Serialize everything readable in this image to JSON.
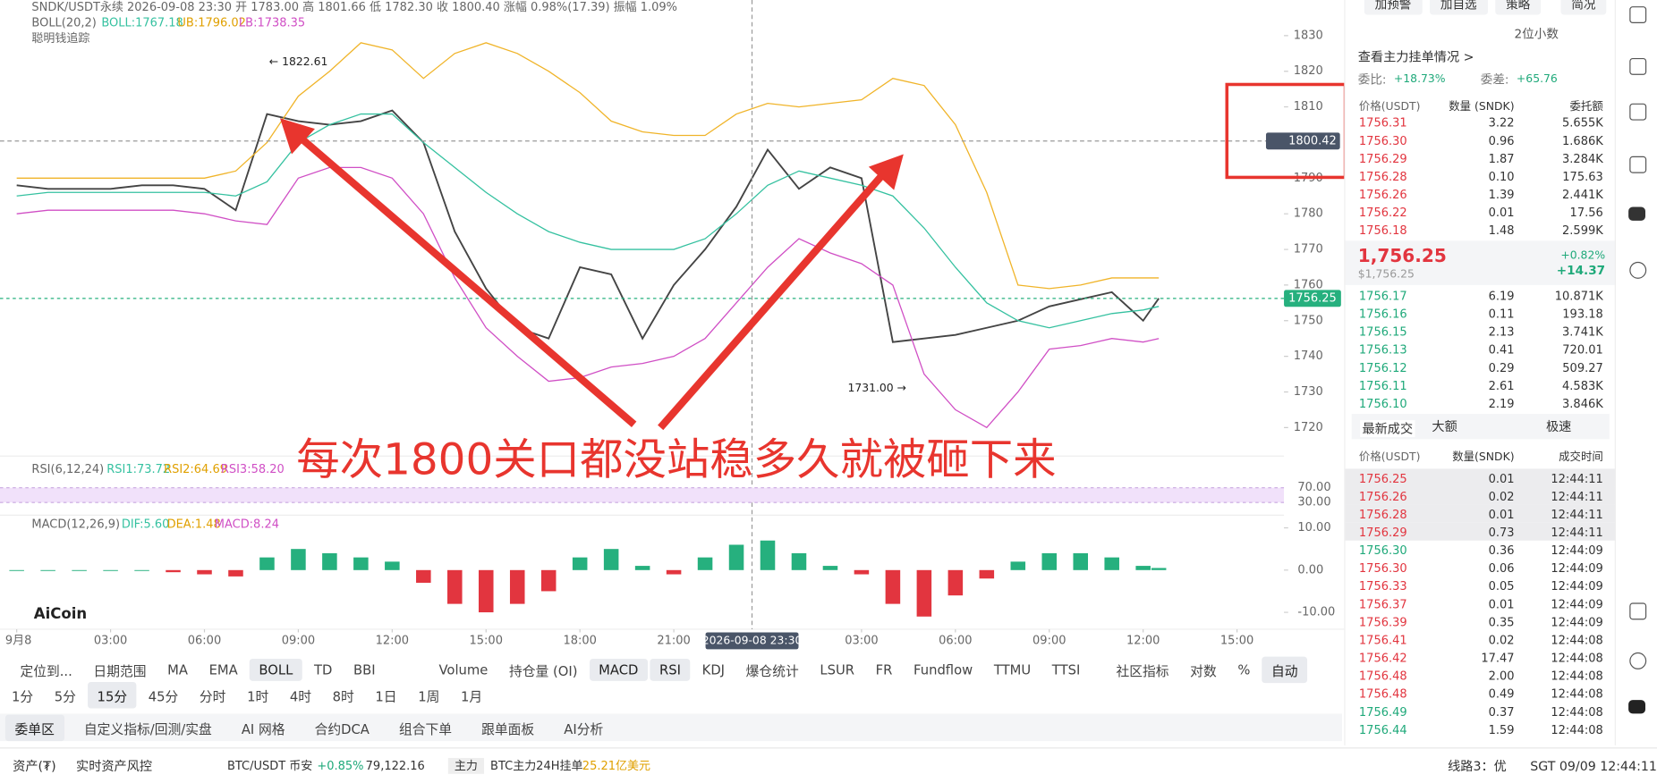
{
  "header": {
    "quote": "SNDK/USDT永续 2026-09-08 23:30 开 1783.00 高 1801.66 低 1782.30 收 1800.40 涨幅 0.98%(17.39) 振幅 1.09%",
    "boll": [
      "BOLL(20,2)",
      "BOLL:1767.18",
      "UB:1796.02",
      "LB:1738.35"
    ],
    "smart": "聪明钱追踪",
    "rsi": [
      "RSI(6,12,24)",
      "RSI1:73.72",
      "RSI2:64.69",
      "RSI3:58.20"
    ],
    "macd": [
      "MACD(12,26,9)",
      "DIF:5.60",
      "DEA:1.48",
      "MACD:8.24"
    ],
    "logo": "AiCoin",
    "overlay_text": "每次1800关口都没站稳多久就被砸下来"
  },
  "chart_data": [
    {
      "type": "line",
      "x": [
        0,
        1,
        2,
        3,
        4,
        5,
        6,
        7,
        8,
        9,
        10,
        11,
        12,
        13,
        14,
        15,
        16,
        17,
        18,
        19,
        20,
        21,
        22,
        23,
        24,
        25,
        26,
        27,
        28,
        29,
        30,
        31,
        32,
        33,
        34,
        35,
        36,
        36.5
      ],
      "xlim": [
        -0.5,
        40.5
      ],
      "xticks": [
        {
          "value": 0,
          "label": "9月8"
        },
        {
          "value": 3,
          "label": "03:00"
        },
        {
          "value": 6,
          "label": "06:00"
        },
        {
          "value": 9,
          "label": "09:00"
        },
        {
          "value": 12,
          "label": "12:00"
        },
        {
          "value": 15,
          "label": "15:00"
        },
        {
          "value": 18,
          "label": "18:00"
        },
        {
          "value": 21,
          "label": "21:00"
        },
        {
          "value": 27,
          "label": "03:00"
        },
        {
          "value": 30,
          "label": "06:00"
        },
        {
          "value": 33,
          "label": "09:00"
        },
        {
          "value": 36,
          "label": "12:00"
        },
        {
          "value": 39,
          "label": "15:00"
        }
      ],
      "ylim": [
        1712,
        1840
      ],
      "yticks": [
        1720,
        1730,
        1740,
        1750,
        1760,
        1770,
        1780,
        1790,
        1800,
        1810,
        1820,
        1830
      ],
      "grid": false,
      "series": [
        {
          "color": "#444444",
          "values": [
            1788,
            1787,
            1787,
            1787,
            1788,
            1788,
            1787,
            1781,
            1808,
            1806,
            1805,
            1806,
            1809,
            1800,
            1775,
            1759,
            1748,
            1745,
            1765,
            1763,
            1745,
            1760,
            1770,
            1782,
            1798,
            1787,
            1793,
            1790,
            1744,
            1745,
            1746,
            1748,
            1750,
            1754,
            1756,
            1758,
            1750,
            1756.25
          ]
        },
        {
          "color": "#f0b429",
          "values": [
            1790,
            1790,
            1790,
            1790,
            1790,
            1790,
            1790,
            1792,
            1800,
            1813,
            1820,
            1828,
            1826,
            1818,
            1825,
            1828,
            1825,
            1820,
            1814,
            1806,
            1803,
            1802,
            1802,
            1808,
            1811,
            1810,
            1811,
            1812,
            1818,
            1816,
            1805,
            1786,
            1760,
            1759,
            1760,
            1762,
            1762,
            1762
          ]
        },
        {
          "color": "#35c1a0",
          "values": [
            1785,
            1786,
            1786,
            1786,
            1786,
            1786,
            1786,
            1785,
            1789,
            1800,
            1805,
            1808,
            1808,
            1800,
            1793,
            1786,
            1780,
            1775,
            1772,
            1770,
            1770,
            1770,
            1773,
            1780,
            1788,
            1792,
            1790,
            1788,
            1785,
            1776,
            1765,
            1755,
            1750,
            1748,
            1750,
            1752,
            1753,
            1754
          ]
        },
        {
          "color": "#d04fc5",
          "values": [
            1780,
            1781,
            1781,
            1781,
            1781,
            1781,
            1780,
            1778,
            1777,
            1790,
            1793,
            1793,
            1790,
            1780,
            1762,
            1748,
            1740,
            1733,
            1734,
            1737,
            1738,
            1740,
            1745,
            1755,
            1765,
            1773,
            1769,
            1766,
            1760,
            1735,
            1725,
            1720,
            1730,
            1742,
            1743,
            1745,
            1744,
            1745
          ]
        }
      ],
      "annotations": [
        {
          "x": 8,
          "y": 1822.61,
          "label": "← 1822.61"
        },
        {
          "x": 28.5,
          "y": 1731.0,
          "label": "1731.00 →"
        }
      ],
      "last_price": 1756.25,
      "crosshair": {
        "x": 23.5,
        "x_label": "2026-09-08 23:30",
        "y": 1800.42
      }
    },
    {
      "type": "line",
      "ylim": [
        0,
        100
      ],
      "yticks": [
        {
          "value": 70,
          "label": "70.00"
        },
        {
          "value": 30,
          "label": "30.00"
        }
      ],
      "band_color": "#f1e1fa"
    },
    {
      "type": "bar",
      "x": [
        0,
        1,
        2,
        3,
        4,
        5,
        6,
        7,
        8,
        9,
        10,
        11,
        12,
        13,
        14,
        15,
        16,
        17,
        18,
        19,
        20,
        21,
        22,
        23,
        24,
        25,
        26,
        27,
        28,
        29,
        30,
        31,
        32,
        33,
        34,
        35,
        36,
        36.5
      ],
      "xlim": [
        -0.5,
        40.5
      ],
      "ylim": [
        -13,
        12.5
      ],
      "yticks": [
        {
          "value": 10,
          "label": "10.00"
        },
        {
          "value": 0,
          "label": "0.00"
        },
        {
          "value": -10,
          "label": "-10.00"
        }
      ],
      "colors": {
        "up": "#26b07e",
        "down": "#e2353f"
      },
      "values": [
        0,
        0,
        0,
        0,
        0,
        -0.5,
        -1,
        -1.5,
        3,
        5,
        4,
        3,
        2,
        -3,
        -8,
        -10,
        -8,
        -5,
        3,
        5,
        1,
        -1,
        3,
        6,
        7,
        4,
        1,
        -1,
        -8,
        -11,
        -6,
        -2,
        2,
        4,
        4,
        3,
        1,
        0.5
      ]
    }
  ],
  "toolbar": {
    "row1": [
      "定位到...",
      "日期范围",
      "MA",
      "EMA",
      "BOLL",
      "TD",
      "BBI",
      "Volume",
      "持仓量 (OI)",
      "MACD",
      "RSI",
      "KDJ",
      "爆仓统计",
      "LSUR",
      "FR",
      "Fundflow",
      "TTMU",
      "TTSI",
      "社区指标",
      "对数",
      "%",
      "自动"
    ],
    "row1_active": [
      4,
      9,
      10,
      21
    ],
    "row2": [
      "1分",
      "5分",
      "15分",
      "45分",
      "分时",
      "1时",
      "4时",
      "8时",
      "1日",
      "1周",
      "1月"
    ],
    "row2_active": [
      2
    ],
    "row3": [
      "委单区",
      "自定义指标/回测/实盘",
      "AI 网格",
      "合约DCA",
      "组合下单",
      "跟单面板",
      "AI分析"
    ],
    "row3_active": [
      0
    ]
  },
  "orderbook": {
    "buttons": [
      "加预警",
      "加自选",
      "策略",
      "简况"
    ],
    "decimals": "2位小数",
    "main_orders": "查看主力挂单情况 >",
    "ratio_label": "委比:",
    "ratio": "+18.73%",
    "diff_label": "委差:",
    "diff": "+65.76",
    "columns": [
      "价格(USDT)",
      "数量 (SNDK)",
      "委托额"
    ],
    "asks": [
      [
        "1756.31",
        "3.22",
        "5.655K"
      ],
      [
        "1756.30",
        "0.96",
        "1.686K"
      ],
      [
        "1756.29",
        "1.87",
        "3.284K"
      ],
      [
        "1756.28",
        "0.10",
        "175.63"
      ],
      [
        "1756.26",
        "1.39",
        "2.441K"
      ],
      [
        "1756.22",
        "0.01",
        "17.56"
      ],
      [
        "1756.18",
        "1.48",
        "2.599K"
      ]
    ],
    "last": "1,756.25",
    "last_usd": "$1,756.25",
    "change_pct": "+0.82%",
    "change": "+14.37",
    "bids": [
      [
        "1756.17",
        "6.19",
        "10.871K"
      ],
      [
        "1756.16",
        "0.11",
        "193.18"
      ],
      [
        "1756.15",
        "2.13",
        "3.741K"
      ],
      [
        "1756.13",
        "0.41",
        "720.01"
      ],
      [
        "1756.12",
        "0.29",
        "509.27"
      ],
      [
        "1756.11",
        "2.61",
        "4.583K"
      ],
      [
        "1756.10",
        "2.19",
        "3.846K"
      ]
    ]
  },
  "trades": {
    "tabs": [
      "最新成交",
      "大额",
      "极速"
    ],
    "columns": [
      "价格(USDT)",
      "数量(SNDK)",
      "成交时间"
    ],
    "rows": [
      {
        "cells": [
          "1756.25",
          "0.01",
          "12:44:11"
        ],
        "side": "sell"
      },
      {
        "cells": [
          "1756.26",
          "0.02",
          "12:44:11"
        ],
        "side": "sell"
      },
      {
        "cells": [
          "1756.28",
          "0.01",
          "12:44:11"
        ],
        "side": "sell"
      },
      {
        "cells": [
          "1756.29",
          "0.73",
          "12:44:11"
        ],
        "side": "sell"
      },
      {
        "cells": [
          "1756.30",
          "0.36",
          "12:44:09"
        ],
        "side": "buy"
      },
      {
        "cells": [
          "1756.30",
          "0.06",
          "12:44:09"
        ],
        "side": "sell"
      },
      {
        "cells": [
          "1756.33",
          "0.05",
          "12:44:09"
        ],
        "side": "sell"
      },
      {
        "cells": [
          "1756.37",
          "0.01",
          "12:44:09"
        ],
        "side": "sell"
      },
      {
        "cells": [
          "1756.39",
          "0.35",
          "12:44:09"
        ],
        "side": "sell"
      },
      {
        "cells": [
          "1756.41",
          "0.02",
          "12:44:08"
        ],
        "side": "sell"
      },
      {
        "cells": [
          "1756.42",
          "17.47",
          "12:44:08"
        ],
        "side": "sell"
      },
      {
        "cells": [
          "1756.48",
          "2.00",
          "12:44:08"
        ],
        "side": "sell"
      },
      {
        "cells": [
          "1756.48",
          "0.49",
          "12:44:08"
        ],
        "side": "sell"
      },
      {
        "cells": [
          "1756.49",
          "0.37",
          "12:44:08"
        ],
        "side": "buy"
      },
      {
        "cells": [
          "1756.44",
          "1.59",
          "12:44:08"
        ],
        "side": "buy"
      }
    ]
  },
  "status": {
    "assets": "资产(₮)",
    "risk": "实时资产风控",
    "pair": "BTC/USDT 币安",
    "pct": "+0.85%",
    "price": "79,122.16",
    "badge": "主力",
    "orders": "BTC主力24H挂单",
    "amount": "25.21亿美元",
    "line": "线路3：优",
    "clock": "SGT 09/09 12:44:11"
  }
}
